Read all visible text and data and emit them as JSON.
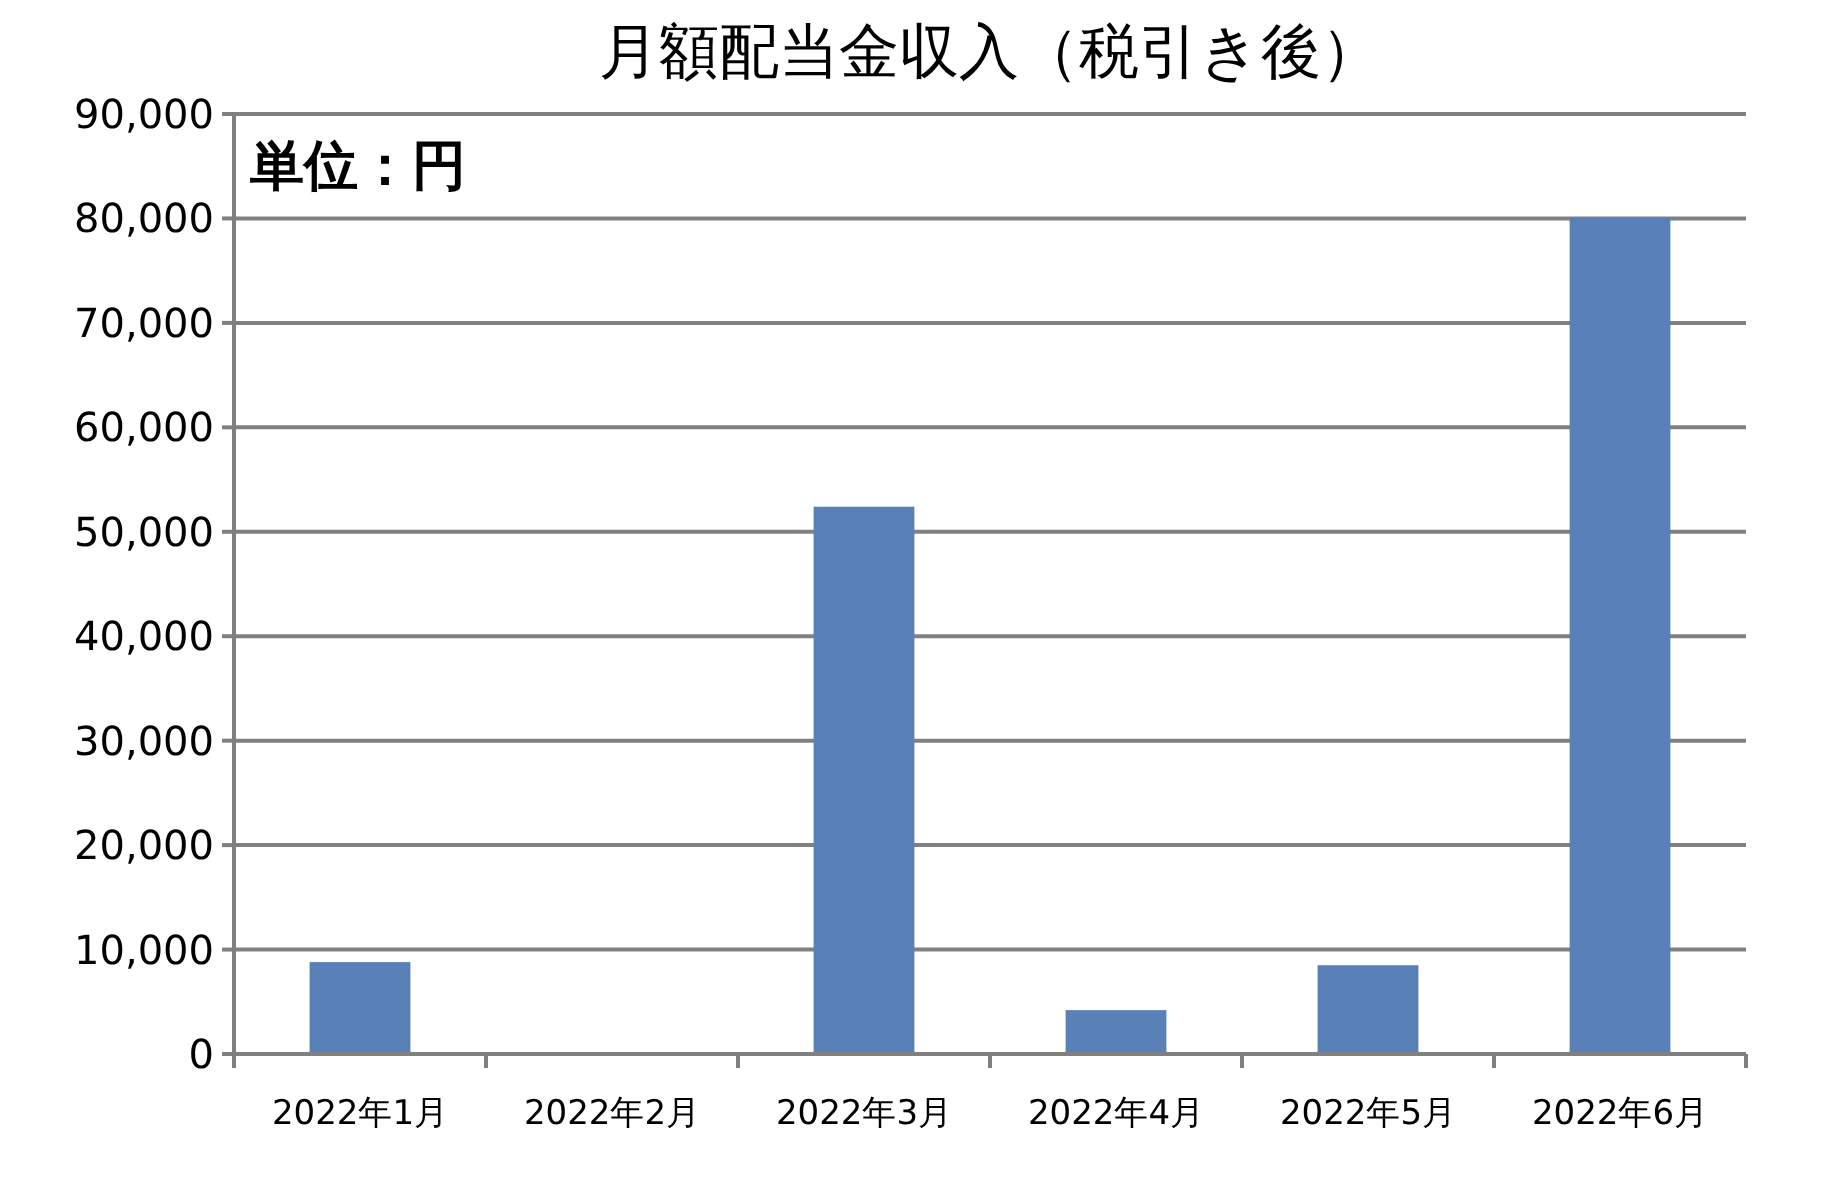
{
  "chart_data": {
    "type": "bar",
    "title": "月額配当金収入（税引き後）",
    "annotations": [
      "単位：円"
    ],
    "categories": [
      "2022年1月",
      "2022年2月",
      "2022年3月",
      "2022年4月",
      "2022年5月",
      "2022年6月"
    ],
    "values": [
      8800,
      0,
      52400,
      4200,
      8500,
      80100
    ],
    "color": "#5a80b8",
    "ylim": [
      0,
      90000
    ],
    "yticks": [
      {
        "value": 0,
        "label": "0"
      },
      {
        "value": 10000,
        "label": "10,000"
      },
      {
        "value": 20000,
        "label": "20,000"
      },
      {
        "value": 30000,
        "label": "30,000"
      },
      {
        "value": 40000,
        "label": "40,000"
      },
      {
        "value": 50000,
        "label": "50,000"
      },
      {
        "value": 60000,
        "label": "60,000"
      },
      {
        "value": 70000,
        "label": "70,000"
      },
      {
        "value": 80000,
        "label": "80,000"
      },
      {
        "value": 90000,
        "label": "90,000"
      }
    ],
    "grid": "y"
  }
}
